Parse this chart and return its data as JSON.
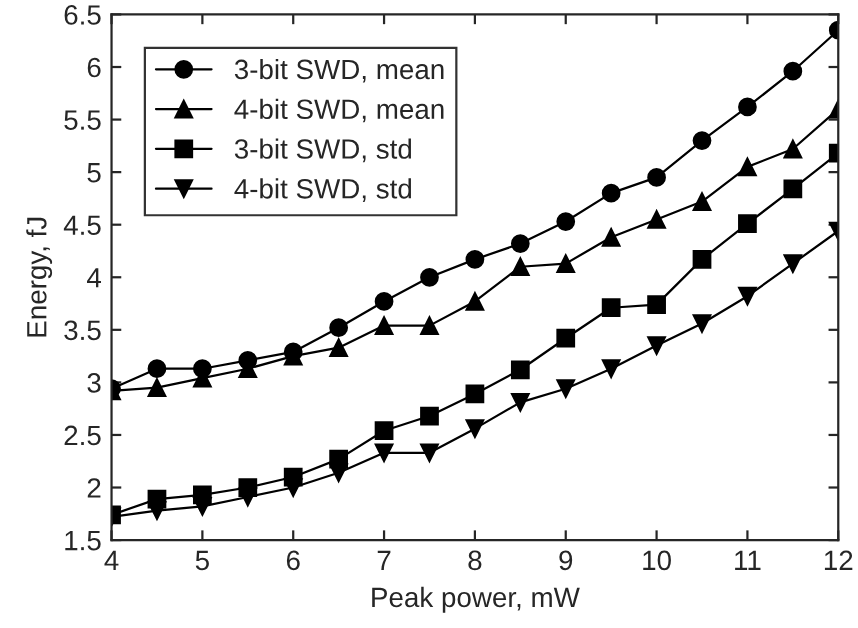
{
  "chart_data": {
    "type": "line",
    "xlabel": "Peak power, mW",
    "ylabel": "Energy, fJ",
    "x": [
      4,
      4.5,
      5,
      5.5,
      6,
      6.5,
      7,
      7.5,
      8,
      8.5,
      9,
      9.5,
      10,
      10.5,
      11,
      11.5,
      12
    ],
    "series": [
      {
        "name": "3-bit SWD, mean",
        "color": "#000000",
        "marker": "circle",
        "values": [
          2.94,
          3.13,
          3.13,
          3.21,
          3.29,
          3.52,
          3.77,
          4.0,
          4.17,
          4.32,
          4.53,
          4.8,
          4.95,
          5.3,
          5.62,
          5.96,
          6.35
        ]
      },
      {
        "name": "4-bit SWD, mean",
        "color": "#000000",
        "marker": "triangle",
        "values": [
          2.92,
          2.95,
          3.04,
          3.13,
          3.25,
          3.33,
          3.54,
          3.54,
          3.77,
          4.1,
          4.13,
          4.38,
          4.55,
          4.72,
          5.05,
          5.22,
          5.6
        ]
      },
      {
        "name": "3-bit SWD, std",
        "color": "#000000",
        "marker": "square",
        "values": [
          1.74,
          1.89,
          1.93,
          2.0,
          2.1,
          2.27,
          2.54,
          2.68,
          2.89,
          3.12,
          3.42,
          3.71,
          3.74,
          4.17,
          4.51,
          4.84,
          5.18
        ]
      },
      {
        "name": "4-bit SWD, std",
        "color": "#000000",
        "marker": "triangle_down",
        "values": [
          1.72,
          1.78,
          1.82,
          1.91,
          2.0,
          2.14,
          2.33,
          2.33,
          2.56,
          2.81,
          2.94,
          3.13,
          3.35,
          3.56,
          3.82,
          4.13,
          4.44
        ]
      }
    ],
    "xlim": [
      4,
      12
    ],
    "xticks": [
      4,
      5,
      6,
      7,
      8,
      9,
      10,
      11,
      12
    ],
    "ylim": [
      1.5,
      6.5
    ],
    "yticks": [
      1.5,
      2,
      2.5,
      3,
      3.5,
      4,
      4.5,
      5,
      5.5,
      6,
      6.5
    ],
    "grid": false,
    "legend": "top left",
    "line_style": "solid"
  }
}
